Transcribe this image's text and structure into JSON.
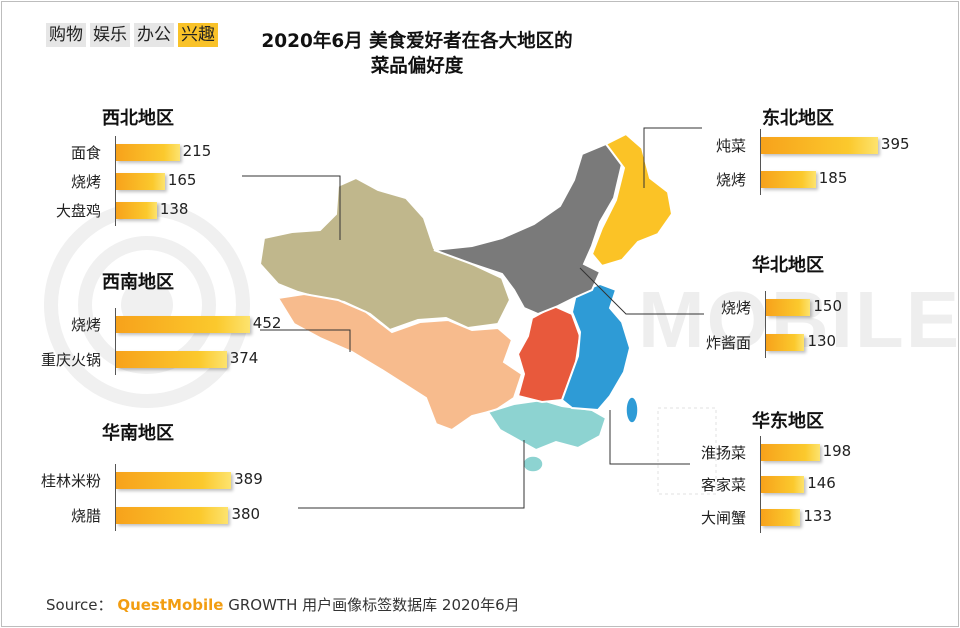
{
  "tabs": [
    {
      "label": "购物",
      "active": false
    },
    {
      "label": "娱乐",
      "active": false
    },
    {
      "label": "办公",
      "active": false
    },
    {
      "label": "兴趣",
      "active": true
    }
  ],
  "title_line1": "2020年6月 美食爱好者在各大地区的",
  "title_line2": "菜品偏好度",
  "watermark_text": "MOBILE",
  "colors": {
    "northwest": "#c0b78c",
    "southwest": "#f7bb8d",
    "south": "#8dd3d1",
    "central": "#e8593c",
    "east": "#2e9bd6",
    "north": "#7a7a7a",
    "northeast": "#fbc326",
    "bar_start": "#f7a21b",
    "bar_end": "#fde36e"
  },
  "source": {
    "prefix": "Source：",
    "brand": "QuestMobile",
    "suffix": "GROWTH 用户画像标签数据库 2020年6月"
  },
  "chart_data": {
    "type": "bar",
    "title": "2020年6月 美食爱好者在各大地区的 菜品偏好度",
    "orientation": "horizontal",
    "groups": [
      {
        "region": "西北地区",
        "categories": [
          "面食",
          "烧烤",
          "大盘鸡"
        ],
        "values": [
          215,
          165,
          138
        ]
      },
      {
        "region": "西南地区",
        "categories": [
          "烧烤",
          "重庆火锅"
        ],
        "values": [
          452,
          374
        ]
      },
      {
        "region": "华南地区",
        "categories": [
          "桂林米粉",
          "烧腊"
        ],
        "values": [
          389,
          380
        ]
      },
      {
        "region": "东北地区",
        "categories": [
          "炖菜",
          "烧烤"
        ],
        "values": [
          395,
          185
        ]
      },
      {
        "region": "华北地区",
        "categories": [
          "烧烤",
          "炸酱面"
        ],
        "values": [
          150,
          130
        ]
      },
      {
        "region": "华东地区",
        "categories": [
          "淮扬菜",
          "客家菜",
          "大闸蟹"
        ],
        "values": [
          198,
          146,
          133
        ]
      }
    ]
  }
}
